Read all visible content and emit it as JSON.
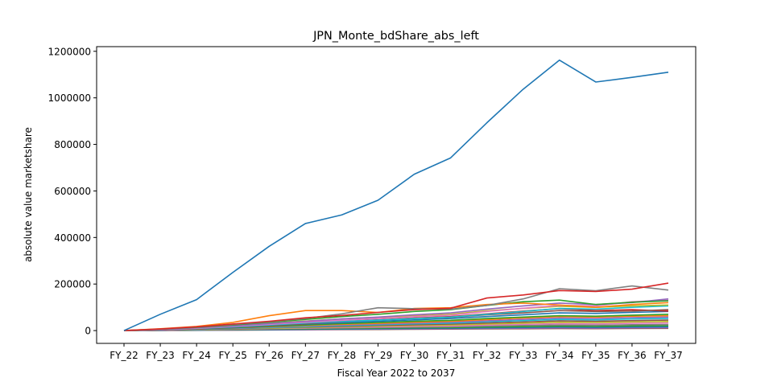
{
  "chart_data": {
    "type": "line",
    "title": "JPN_Monte_bdShare_abs_left",
    "xlabel": "Fiscal Year 2022 to 2037",
    "ylabel": "absolute value marketshare",
    "categories": [
      "FY_22",
      "FY_23",
      "FY_24",
      "FY_25",
      "FY_26",
      "FY_27",
      "FY_28",
      "FY_29",
      "FY_30",
      "FY_31",
      "FY_32",
      "FY_33",
      "FY_34",
      "FY_35",
      "FY_36",
      "FY_37"
    ],
    "ylim": [
      -55000,
      1220000
    ],
    "yticks": [
      0,
      200000,
      400000,
      600000,
      800000,
      1000000,
      1200000
    ],
    "ytick_labels": [
      "0",
      "200000",
      "400000",
      "600000",
      "800000",
      "1000000",
      "1200000"
    ],
    "grid": false,
    "legend": "none",
    "series": [
      {
        "color": "#1f77b4",
        "values": [
          0,
          70000,
          133000,
          250000,
          362000,
          460000,
          497000,
          560000,
          672000,
          742000,
          893000,
          1037000,
          1162000,
          1068000,
          1088000,
          1110000
        ]
      },
      {
        "color": "#d62728",
        "values": [
          0,
          7000,
          16000,
          28000,
          40000,
          55000,
          65000,
          78000,
          90000,
          96000,
          140000,
          153000,
          172000,
          168000,
          178000,
          204000
        ]
      },
      {
        "color": "#7f7f7f",
        "values": [
          0,
          6000,
          15000,
          26000,
          38000,
          52000,
          72000,
          98000,
          94000,
          92000,
          108000,
          136000,
          180000,
          171000,
          192000,
          174000
        ]
      },
      {
        "color": "#ff7f0e",
        "values": [
          0,
          8000,
          18000,
          35000,
          64000,
          86000,
          86000,
          78000,
          95000,
          98000,
          112000,
          118000,
          110000,
          100000,
          112000,
          120000
        ]
      },
      {
        "color": "#2ca02c",
        "values": [
          0,
          6000,
          14000,
          24000,
          36000,
          48000,
          60000,
          70000,
          82000,
          90000,
          108000,
          124000,
          131000,
          112000,
          122000,
          128000
        ]
      },
      {
        "color": "#9467bd",
        "values": [
          0,
          5000,
          12000,
          20000,
          30000,
          40000,
          50000,
          58000,
          68000,
          76000,
          92000,
          106000,
          118000,
          112000,
          120000,
          136000
        ]
      },
      {
        "color": "#e377c2",
        "values": [
          0,
          4000,
          10000,
          18000,
          27000,
          36000,
          44000,
          52000,
          60000,
          66000,
          82000,
          96000,
          108000,
          106000,
          124000,
          130000
        ]
      },
      {
        "color": "#bcbd22",
        "values": [
          0,
          5000,
          12000,
          21000,
          31000,
          41000,
          50000,
          57000,
          63000,
          70000,
          85000,
          95000,
          104000,
          100000,
          106000,
          110000
        ]
      },
      {
        "color": "#17becf",
        "values": [
          0,
          4000,
          9000,
          16000,
          24000,
          32000,
          39000,
          45000,
          52000,
          58000,
          70000,
          82000,
          95000,
          92000,
          100000,
          106000
        ]
      },
      {
        "color": "#8c564b",
        "values": [
          0,
          4000,
          10000,
          17000,
          25000,
          33000,
          40000,
          46000,
          52000,
          57000,
          68000,
          76000,
          86000,
          82000,
          84000,
          90000
        ]
      },
      {
        "color": "#d62728",
        "values": [
          0,
          3000,
          8000,
          15000,
          22000,
          30000,
          38000,
          46000,
          54000,
          60000,
          72000,
          84000,
          94000,
          86000,
          90000,
          84000
        ]
      },
      {
        "color": "#1f77b4",
        "values": [
          0,
          3000,
          8000,
          14000,
          21000,
          28000,
          34000,
          40000,
          46000,
          52000,
          60000,
          68000,
          76000,
          74000,
          78000,
          82000
        ]
      },
      {
        "color": "#2ca02c",
        "values": [
          0,
          3000,
          7000,
          12000,
          18000,
          24000,
          30000,
          35000,
          40000,
          44000,
          52000,
          58000,
          64000,
          62000,
          66000,
          70000
        ]
      },
      {
        "color": "#ff7f0e",
        "values": [
          0,
          3000,
          7000,
          12000,
          17000,
          22000,
          27000,
          31000,
          36000,
          40000,
          47000,
          54000,
          60000,
          58000,
          62000,
          64000
        ]
      },
      {
        "color": "#9467bd",
        "values": [
          0,
          2000,
          6000,
          10000,
          15000,
          20000,
          24000,
          28000,
          32000,
          36000,
          42000,
          48000,
          54000,
          52000,
          56000,
          58000
        ]
      },
      {
        "color": "#17becf",
        "values": [
          0,
          2000,
          5000,
          9000,
          13000,
          17000,
          21000,
          25000,
          29000,
          32000,
          38000,
          43000,
          48000,
          46000,
          50000,
          52000
        ]
      },
      {
        "color": "#8c564b",
        "values": [
          0,
          2000,
          5000,
          8000,
          12000,
          15000,
          18000,
          22000,
          25000,
          28000,
          33000,
          37000,
          42000,
          40000,
          43000,
          45000
        ]
      },
      {
        "color": "#bcbd22",
        "values": [
          0,
          2000,
          4000,
          7000,
          10000,
          13000,
          16000,
          19000,
          22000,
          24000,
          28000,
          32000,
          36000,
          35000,
          37000,
          39000
        ]
      },
      {
        "color": "#e377c2",
        "values": [
          0,
          1500,
          4000,
          6000,
          9000,
          11000,
          14000,
          16000,
          18000,
          20000,
          24000,
          27000,
          30000,
          29000,
          31000,
          33000
        ]
      },
      {
        "color": "#7f7f7f",
        "values": [
          0,
          1000,
          3000,
          5000,
          7000,
          9000,
          11000,
          13000,
          15000,
          16000,
          19000,
          22000,
          24000,
          23000,
          25000,
          26000
        ]
      },
      {
        "color": "#2ca02c",
        "values": [
          0,
          1000,
          2500,
          4000,
          6000,
          7500,
          9000,
          10500,
          12000,
          13000,
          15000,
          17000,
          19000,
          18000,
          20000,
          21000
        ]
      },
      {
        "color": "#1f77b4",
        "values": [
          0,
          800,
          2000,
          3200,
          4500,
          5800,
          7000,
          8200,
          9400,
          10500,
          12000,
          13500,
          15000,
          14000,
          15500,
          16500
        ]
      },
      {
        "color": "#9467bd",
        "values": [
          0,
          500,
          1500,
          2500,
          3500,
          4500,
          5500,
          6500,
          7500,
          8500,
          9500,
          10500,
          11500,
          11000,
          12000,
          12500
        ]
      },
      {
        "color": "#8c564b",
        "values": [
          0,
          400,
          1000,
          1800,
          2600,
          3400,
          4200,
          5000,
          5800,
          6400,
          7200,
          8000,
          8800,
          8400,
          9000,
          9500
        ]
      }
    ]
  }
}
